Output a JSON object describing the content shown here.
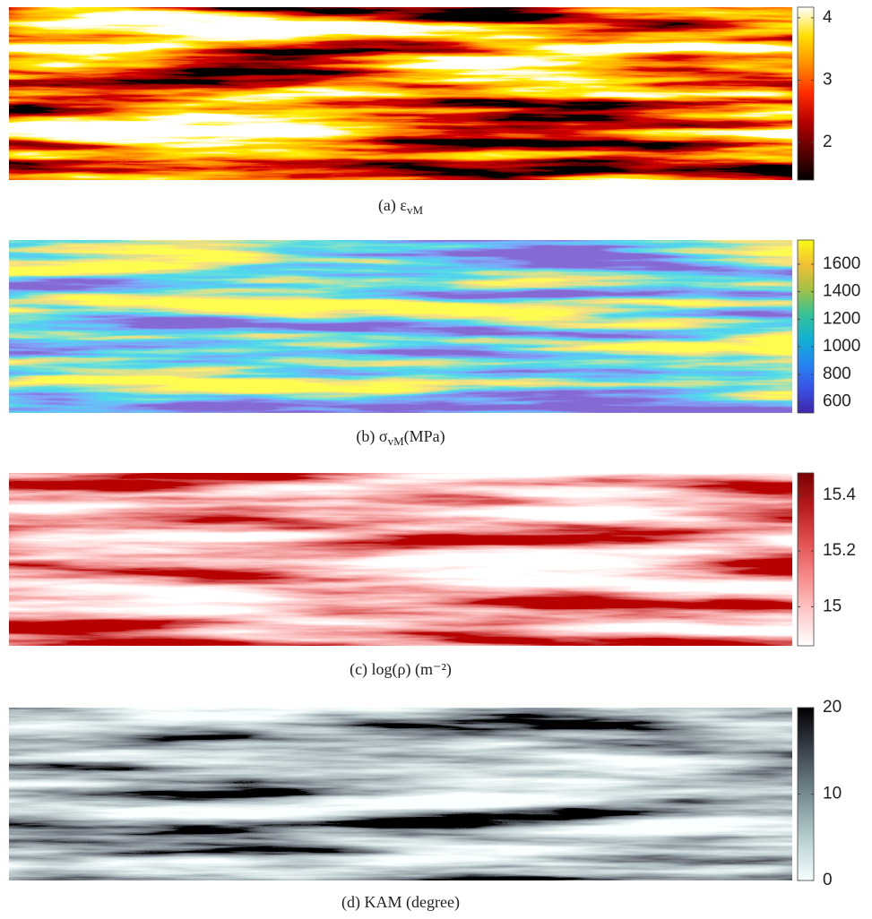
{
  "chart_data": [
    {
      "type": "heatmap",
      "caption": [
        {
          "text": "(a) ε"
        },
        {
          "text": "vM",
          "sub": true
        }
      ],
      "colormap": [
        "#000000",
        "#5a0000",
        "#b40000",
        "#ff2a00",
        "#ff8c00",
        "#ffe000",
        "#ffffff"
      ],
      "ylim": [
        1.4,
        4.17
      ],
      "yticks": [
        2,
        3,
        4
      ]
    },
    {
      "type": "heatmap",
      "caption": [
        {
          "text": "(b) σ"
        },
        {
          "text": "vM",
          "sub": true
        },
        {
          "text": "(MPa)"
        }
      ],
      "colormap": [
        "#3e26a8",
        "#3a52e8",
        "#2386f0",
        "#12b1d2",
        "#36c296",
        "#a2c145",
        "#f2bf36",
        "#f9fb15"
      ],
      "ylim": [
        520,
        1775
      ],
      "yticks": [
        600,
        800,
        1000,
        1200,
        1400,
        1600
      ]
    },
    {
      "type": "heatmap",
      "caption": [
        {
          "text": "(c) log(ρ) (m⁻²)"
        }
      ],
      "colormap": [
        "#ffffff",
        "#ffc8c8",
        "#f78a8a",
        "#e25050",
        "#b81c1c",
        "#7a0000"
      ],
      "ylim": [
        14.86,
        15.48
      ],
      "yticks": [
        15,
        15.2,
        15.4
      ]
    },
    {
      "type": "heatmap",
      "caption": [
        {
          "text": "(d) KAM (degree)"
        }
      ],
      "colormap": [
        "#f4ffff",
        "#c2d8da",
        "#8fa6aa",
        "#5e6e76",
        "#30363f",
        "#000000"
      ],
      "ylim": [
        0,
        20
      ],
      "yticks": [
        0,
        10,
        20
      ]
    }
  ]
}
